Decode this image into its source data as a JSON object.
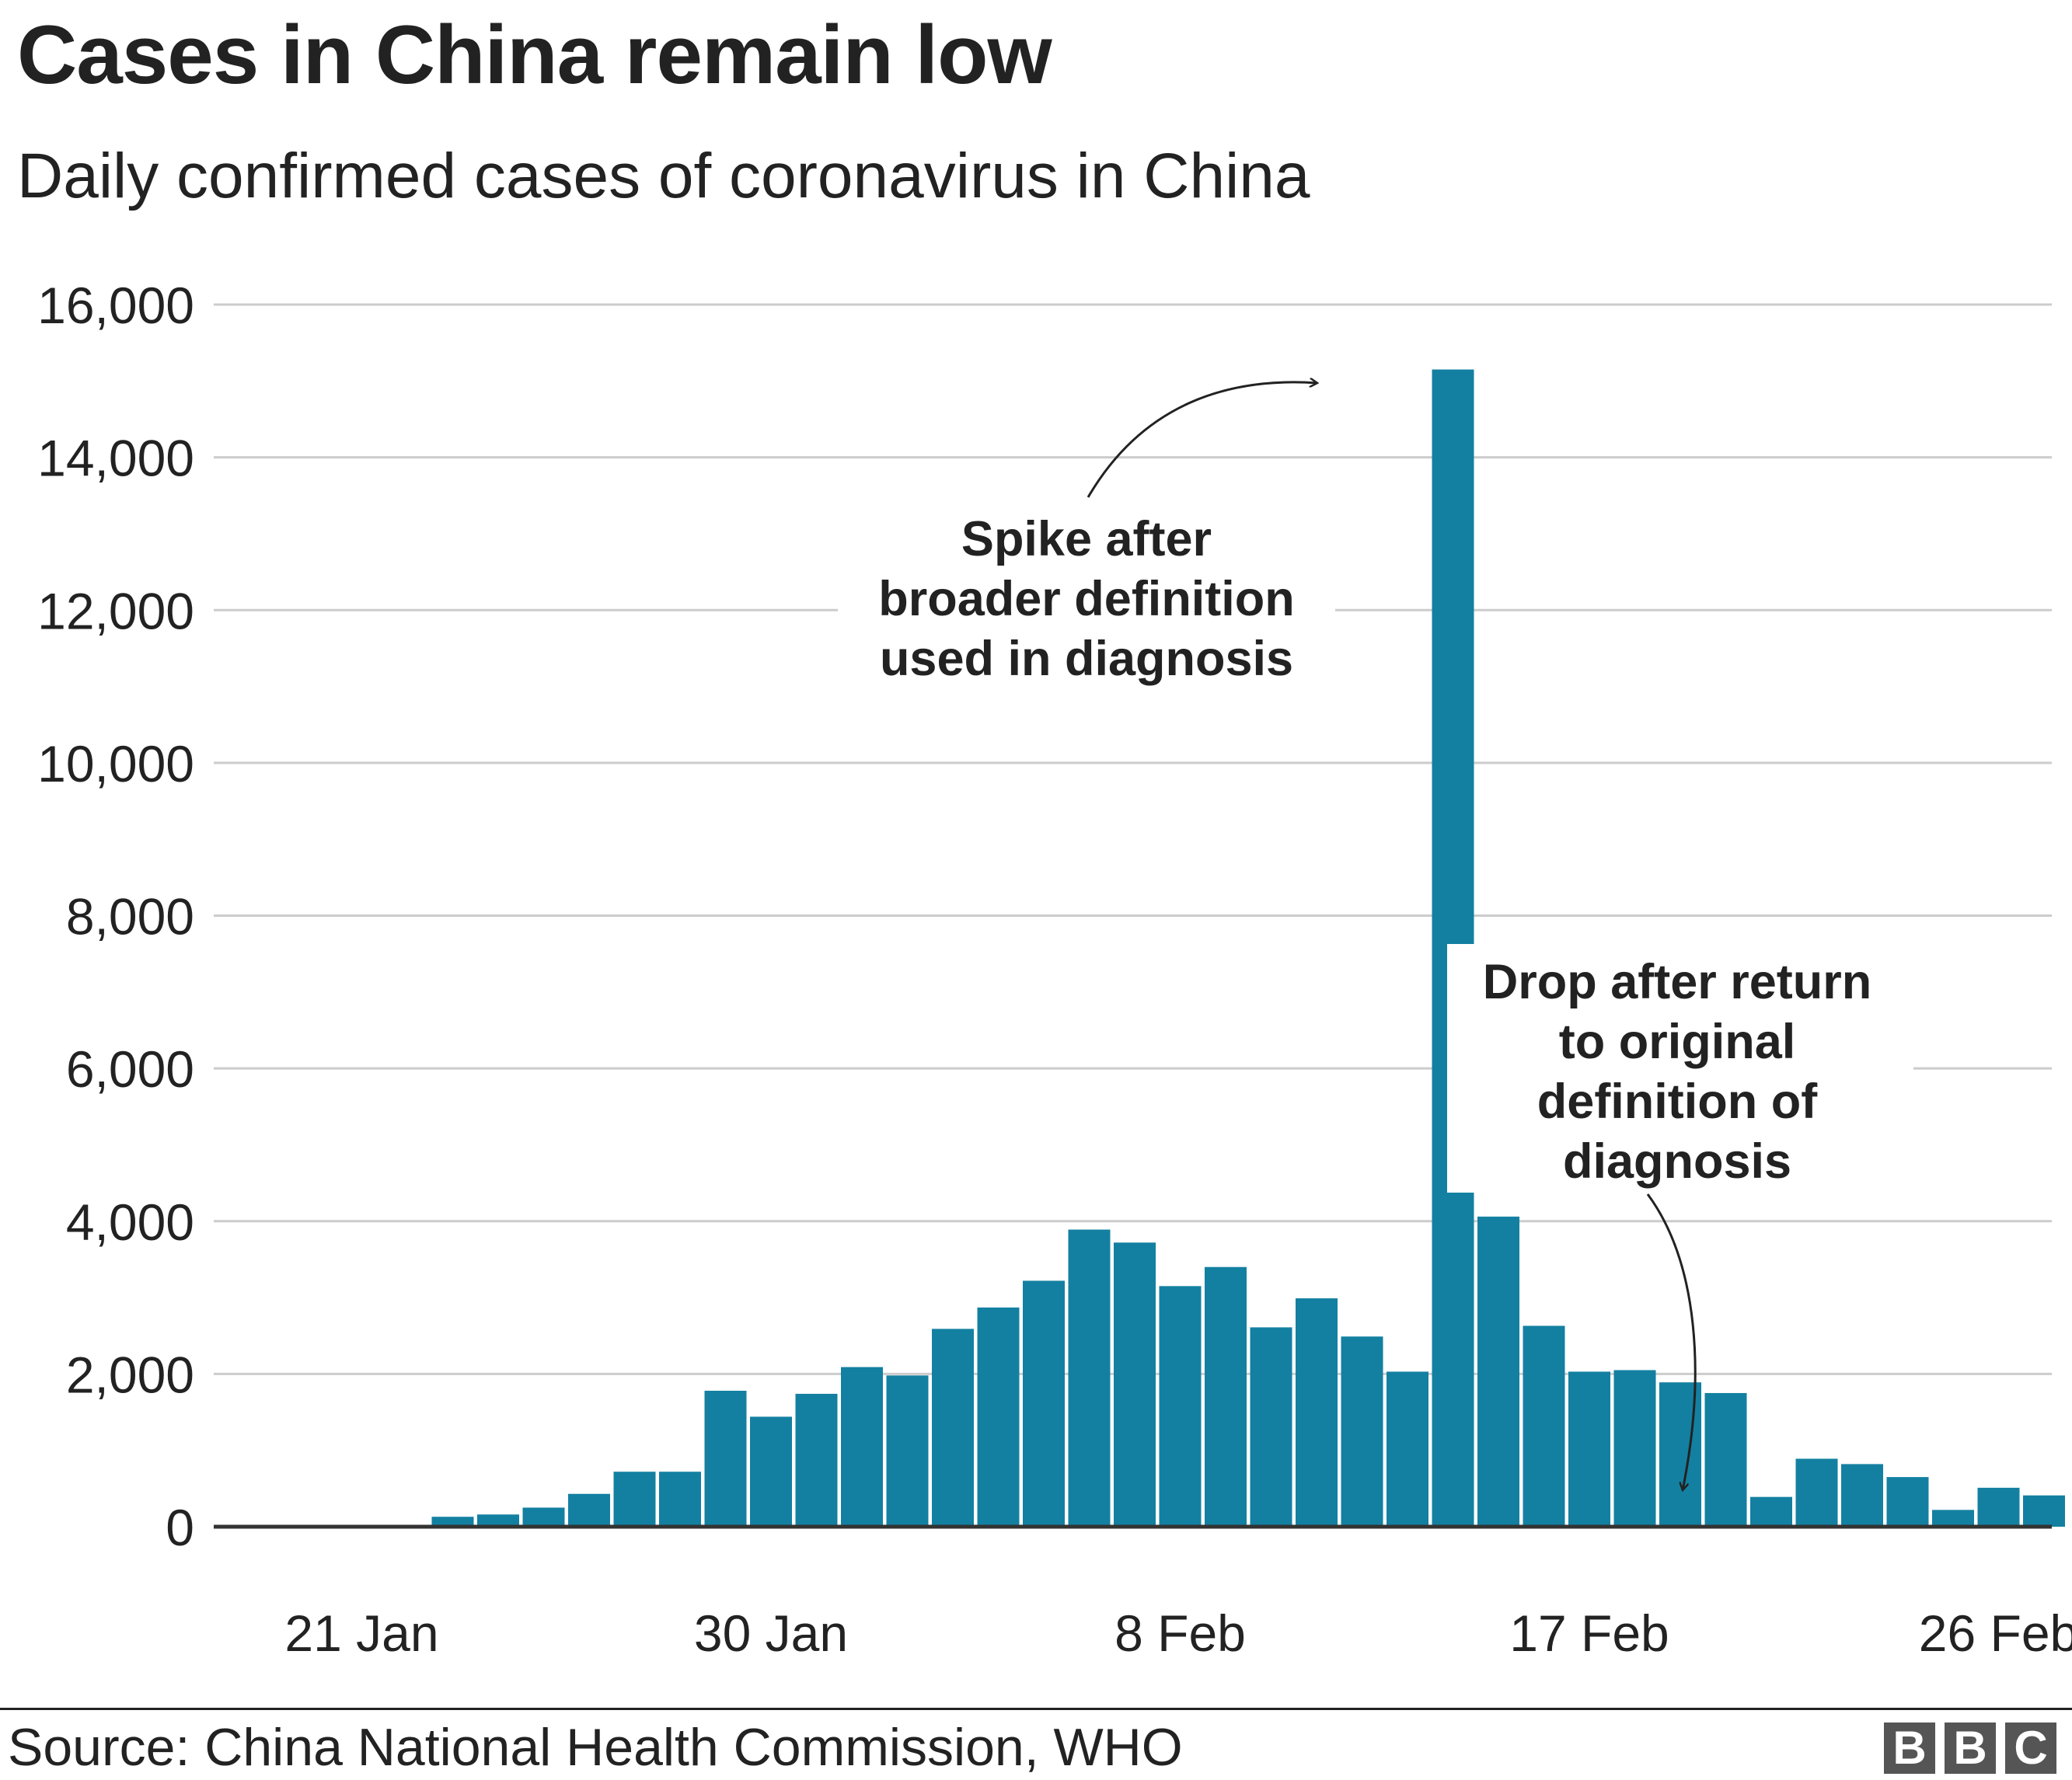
{
  "title": "Cases in China remain low",
  "subtitle": "Daily confirmed cases of coronavirus in China",
  "source": "Source: China National Health Commission, WHO",
  "logo": [
    "B",
    "B",
    "C"
  ],
  "colors": {
    "bar": "#1380A1",
    "grid": "#CCCCCC",
    "axis": "#333333",
    "text": "#222222"
  },
  "chart_data": {
    "type": "bar",
    "x_start": "20 Jan",
    "x_end": "29 Feb",
    "categories": [
      "20 Jan",
      "21 Jan",
      "22 Jan",
      "23 Jan",
      "24 Jan",
      "25 Jan",
      "26 Jan",
      "27 Jan",
      "28 Jan",
      "29 Jan",
      "30 Jan",
      "31 Jan",
      "1 Feb",
      "2 Feb",
      "3 Feb",
      "4 Feb",
      "5 Feb",
      "6 Feb",
      "7 Feb",
      "8 Feb",
      "9 Feb",
      "10 Feb",
      "11 Feb",
      "12 Feb",
      "13 Feb",
      "14 Feb",
      "15 Feb",
      "16 Feb",
      "17 Feb",
      "18 Feb",
      "19 Feb",
      "20 Feb",
      "21 Feb",
      "22 Feb",
      "23 Feb",
      "24 Feb",
      "25 Feb",
      "26 Feb",
      "27 Feb",
      "28 Feb",
      "29 Feb"
    ],
    "values": [
      0,
      0,
      0,
      130,
      160,
      250,
      430,
      720,
      720,
      1780,
      1440,
      1740,
      2090,
      1980,
      2590,
      2870,
      3220,
      3890,
      3720,
      3150,
      3400,
      2610,
      2990,
      2490,
      2030,
      15150,
      4060,
      2630,
      2030,
      2050,
      1890,
      1750,
      390,
      890,
      820,
      650,
      220,
      510,
      410,
      null,
      null
    ],
    "tick_labels": [
      "21 Jan",
      "30 Jan",
      "8 Feb",
      "17 Feb",
      "26 Feb"
    ],
    "y_ticks": [
      "0",
      "2,000",
      "4,000",
      "6,000",
      "8,000",
      "10,000",
      "12,000",
      "14,000",
      "16,000"
    ],
    "ylim": [
      0,
      16000
    ],
    "grid": true,
    "annotations": [
      {
        "lines": [
          "Spike after",
          "broader definition",
          "used in diagnosis"
        ],
        "target": "13 Feb"
      },
      {
        "lines": [
          "Drop after return",
          "to original",
          "definition of",
          "diagnosis"
        ],
        "target": "20 Feb"
      }
    ]
  }
}
